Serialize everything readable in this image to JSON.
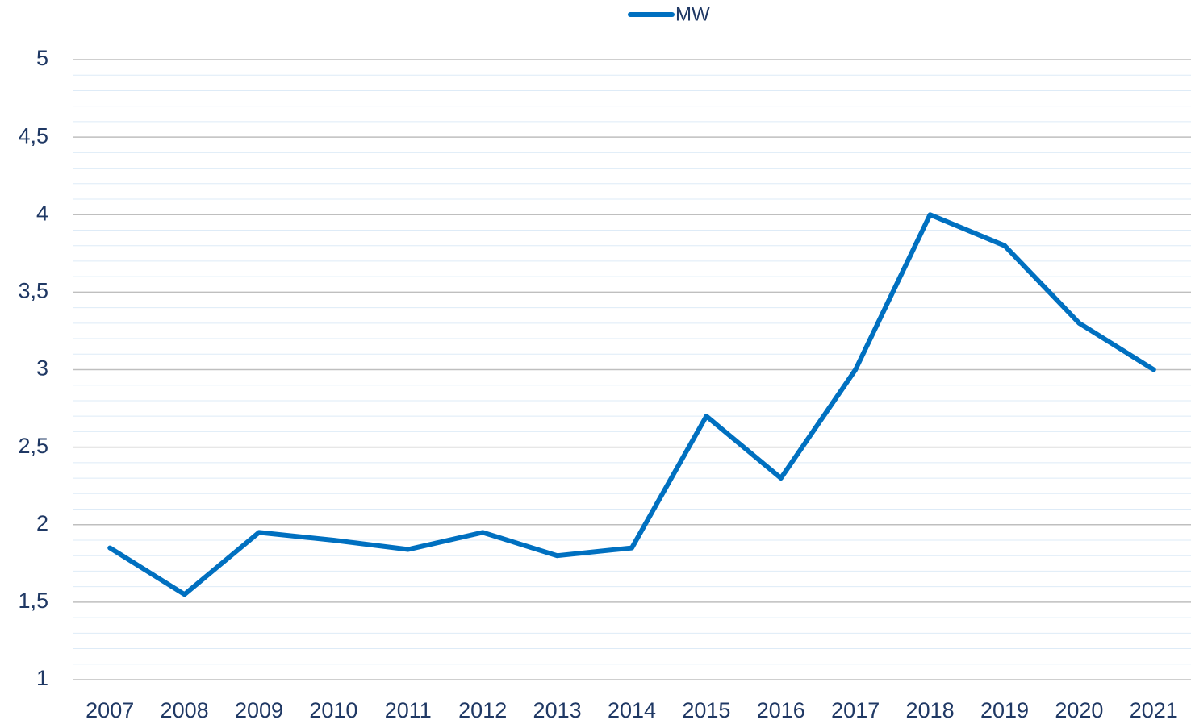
{
  "chart_data": {
    "type": "line",
    "categories": [
      "2007",
      "2008",
      "2009",
      "2010",
      "2011",
      "2012",
      "2013",
      "2014",
      "2015",
      "2016",
      "2017",
      "2018",
      "2019",
      "2020",
      "2021"
    ],
    "series": [
      {
        "name": "MW",
        "color": "#0070c0",
        "values": [
          1.85,
          1.55,
          1.95,
          1.9,
          1.84,
          1.95,
          1.8,
          1.85,
          2.7,
          2.3,
          3,
          4,
          3.8,
          3.3,
          3
        ]
      }
    ],
    "ylim": [
      1,
      5
    ],
    "yticks": [
      1,
      {
        "value": 1.5,
        "label": "1,5"
      },
      2,
      {
        "value": 2.5,
        "label": "2,5"
      },
      3,
      {
        "value": 3.5,
        "label": "3,5"
      },
      4,
      {
        "value": 4.5,
        "label": "4,5"
      },
      5
    ],
    "yminorticks": [
      1.1,
      1.2,
      1.3,
      1.4,
      1.6,
      1.7,
      1.8,
      1.9,
      2.1,
      2.2,
      2.3,
      2.4,
      2.6,
      2.7,
      2.8,
      2.9,
      3.1,
      3.2,
      3.3,
      3.4,
      3.6,
      3.7,
      3.8,
      3.9,
      4.1,
      4.2,
      4.3,
      4.4,
      4.6,
      4.7,
      4.8,
      4.9
    ],
    "grid": true,
    "legend": "top"
  }
}
